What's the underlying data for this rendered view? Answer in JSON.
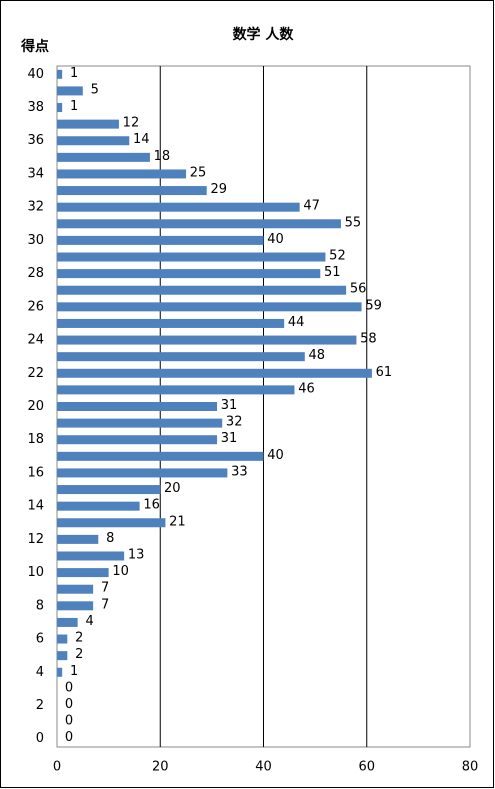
{
  "chart_data": {
    "type": "hbar",
    "title": "数学 人数",
    "y_label": "得点",
    "categories": [
      "40",
      null,
      "38",
      null,
      "36",
      null,
      "34",
      null,
      "32",
      null,
      "30",
      null,
      "28",
      null,
      "26",
      null,
      "24",
      null,
      "22",
      null,
      "20",
      null,
      "18",
      null,
      "16",
      null,
      "14",
      null,
      "12",
      null,
      "10",
      null,
      "8",
      null,
      "6",
      null,
      "4",
      null,
      "2",
      null,
      "0"
    ],
    "values": [
      1,
      5,
      1,
      12,
      14,
      18,
      25,
      29,
      47,
      55,
      40,
      52,
      51,
      56,
      59,
      44,
      58,
      48,
      61,
      46,
      31,
      32,
      31,
      40,
      33,
      20,
      16,
      21,
      8,
      13,
      10,
      7,
      7,
      4,
      2,
      2,
      1,
      0,
      0,
      0,
      0
    ],
    "color": "#4f81bd",
    "xlim": [
      0,
      80
    ],
    "xticks": [
      0,
      20,
      40,
      60,
      80
    ],
    "grid": true
  }
}
